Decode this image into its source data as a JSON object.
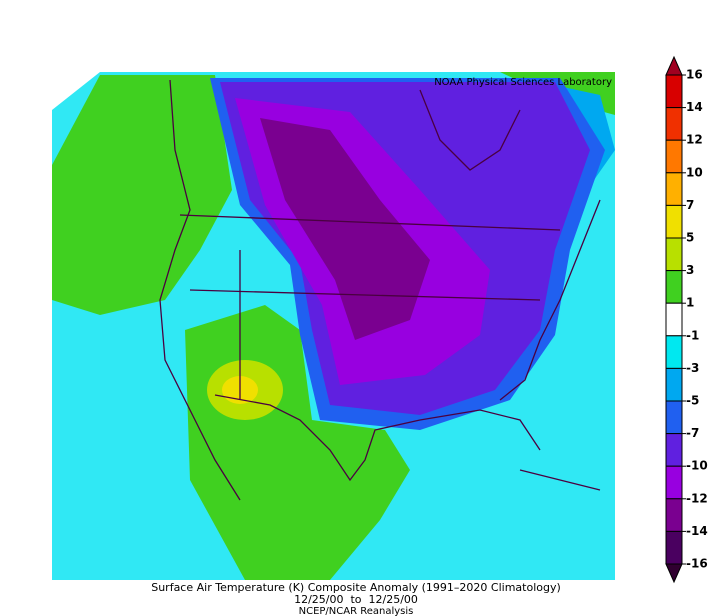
{
  "header": {
    "lab": "NOAA Physical Sciences Laboratory"
  },
  "colorbar": {
    "ticks": [
      16,
      14,
      12,
      10,
      7,
      5,
      3,
      1,
      -1,
      -3,
      -5,
      -7,
      -10,
      -12,
      -14,
      -16
    ],
    "colors": [
      "#a00020",
      "#d80000",
      "#f03000",
      "#ff7800",
      "#ffb000",
      "#f0e000",
      "#b8e000",
      "#40d020",
      "#ffffff",
      "#00e8f0",
      "#00a8f0",
      "#2060f0",
      "#6020e0",
      "#9800e0",
      "#7a0090",
      "#4a0060",
      "#300030"
    ]
  },
  "caption": {
    "title": "Surface Air Temperature (K) Composite Anomaly (1991–2020 Climatology)",
    "dates": "12/25/00  to  12/25/00",
    "source": "NCEP/NCAR Reanalysis"
  }
}
